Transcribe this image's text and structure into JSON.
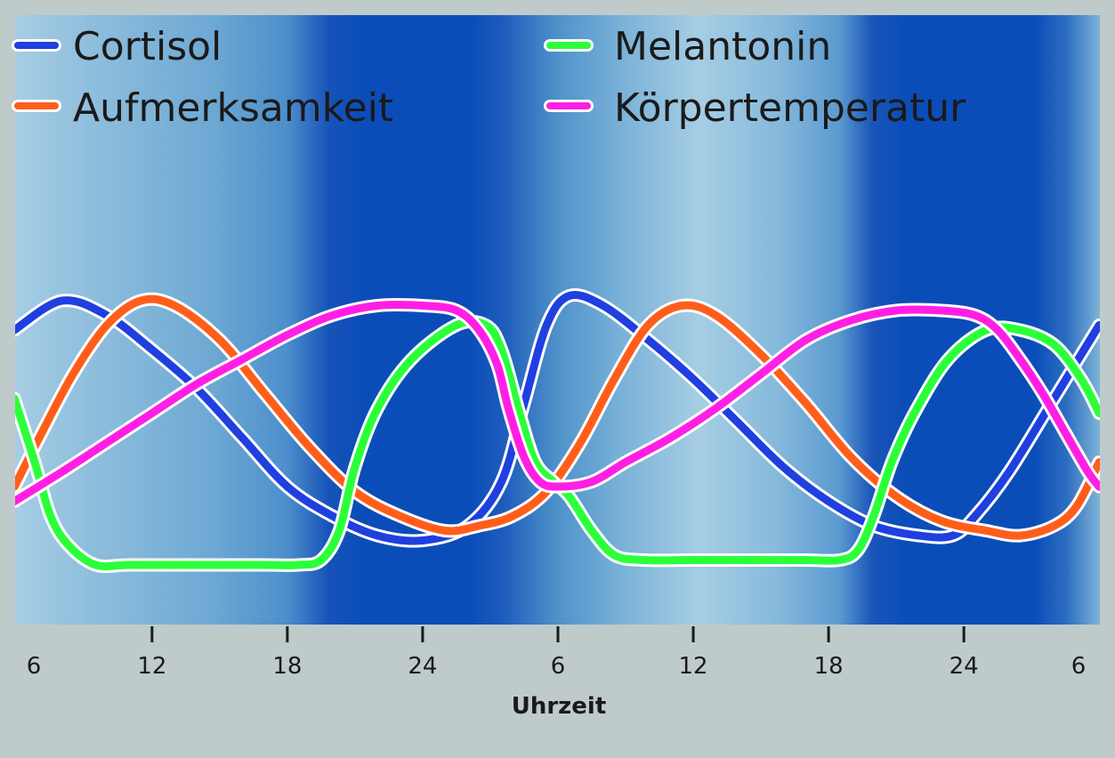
{
  "chart_data": {
    "type": "line",
    "xlabel": "Uhrzeit",
    "x_ticks": [
      {
        "label": "6",
        "value": 6
      },
      {
        "label": "12",
        "value": 12
      },
      {
        "label": "18",
        "value": 18
      },
      {
        "label": "24",
        "value": 24
      },
      {
        "label": "6",
        "value": 30
      },
      {
        "label": "12",
        "value": 36
      },
      {
        "label": "18",
        "value": 42
      },
      {
        "label": "24",
        "value": 48
      },
      {
        "label": "6",
        "value": 54
      }
    ],
    "xlim": [
      5.93,
      54.03
    ],
    "ylim": [
      0,
      1
    ],
    "legend_position": "top",
    "background": "day/night gradient (light blue = day, dark blue = night)",
    "series": [
      {
        "name": "Cortisol",
        "color": "#1f3fe0",
        "points": [
          [
            5.9,
            0.58
          ],
          [
            8.0,
            0.64
          ],
          [
            10.0,
            0.61
          ],
          [
            12.0,
            0.54
          ],
          [
            14.0,
            0.46
          ],
          [
            16.0,
            0.36
          ],
          [
            18.0,
            0.26
          ],
          [
            20.0,
            0.2
          ],
          [
            22.0,
            0.16
          ],
          [
            24.0,
            0.15
          ],
          [
            26.0,
            0.18
          ],
          [
            27.5,
            0.27
          ],
          [
            28.5,
            0.43
          ],
          [
            29.5,
            0.59
          ],
          [
            30.5,
            0.65
          ],
          [
            32.0,
            0.63
          ],
          [
            34.0,
            0.56
          ],
          [
            36.0,
            0.48
          ],
          [
            38.0,
            0.39
          ],
          [
            40.0,
            0.3
          ],
          [
            42.0,
            0.23
          ],
          [
            44.0,
            0.18
          ],
          [
            46.0,
            0.16
          ],
          [
            47.5,
            0.16
          ],
          [
            48.5,
            0.2
          ],
          [
            50.0,
            0.29
          ],
          [
            52.0,
            0.44
          ],
          [
            54.0,
            0.59
          ]
        ]
      },
      {
        "name": "Aufmerksamkeit",
        "color": "#ff5e1a",
        "points": [
          [
            5.9,
            0.26
          ],
          [
            7.0,
            0.36
          ],
          [
            8.5,
            0.49
          ],
          [
            10.0,
            0.59
          ],
          [
            11.5,
            0.64
          ],
          [
            13.0,
            0.63
          ],
          [
            15.0,
            0.56
          ],
          [
            17.0,
            0.45
          ],
          [
            19.0,
            0.34
          ],
          [
            21.0,
            0.25
          ],
          [
            23.0,
            0.2
          ],
          [
            25.0,
            0.17
          ],
          [
            26.5,
            0.18
          ],
          [
            28.0,
            0.2
          ],
          [
            29.5,
            0.25
          ],
          [
            31.0,
            0.35
          ],
          [
            32.5,
            0.48
          ],
          [
            34.0,
            0.59
          ],
          [
            35.5,
            0.63
          ],
          [
            37.0,
            0.61
          ],
          [
            39.0,
            0.53
          ],
          [
            41.0,
            0.43
          ],
          [
            43.0,
            0.32
          ],
          [
            45.0,
            0.24
          ],
          [
            47.0,
            0.19
          ],
          [
            49.0,
            0.17
          ],
          [
            50.5,
            0.16
          ],
          [
            52.0,
            0.18
          ],
          [
            53.0,
            0.22
          ],
          [
            54.0,
            0.31
          ]
        ]
      },
      {
        "name": "Melantonin",
        "color": "#2bff3a",
        "points": [
          [
            5.9,
            0.44
          ],
          [
            6.8,
            0.31
          ],
          [
            7.5,
            0.2
          ],
          [
            8.3,
            0.14
          ],
          [
            9.5,
            0.1
          ],
          [
            11.0,
            0.1
          ],
          [
            14.0,
            0.1
          ],
          [
            17.0,
            0.1
          ],
          [
            18.5,
            0.1
          ],
          [
            19.5,
            0.11
          ],
          [
            20.3,
            0.17
          ],
          [
            21.0,
            0.3
          ],
          [
            22.0,
            0.42
          ],
          [
            23.5,
            0.52
          ],
          [
            25.5,
            0.59
          ],
          [
            26.8,
            0.59
          ],
          [
            27.5,
            0.54
          ],
          [
            28.3,
            0.41
          ],
          [
            29.0,
            0.31
          ],
          [
            29.8,
            0.27
          ],
          [
            30.5,
            0.24
          ],
          [
            31.5,
            0.17
          ],
          [
            32.5,
            0.12
          ],
          [
            33.8,
            0.11
          ],
          [
            36.0,
            0.11
          ],
          [
            39.0,
            0.11
          ],
          [
            41.0,
            0.11
          ],
          [
            42.5,
            0.11
          ],
          [
            43.3,
            0.13
          ],
          [
            44.0,
            0.2
          ],
          [
            44.8,
            0.31
          ],
          [
            45.8,
            0.41
          ],
          [
            47.3,
            0.52
          ],
          [
            49.0,
            0.58
          ],
          [
            50.5,
            0.58
          ],
          [
            52.0,
            0.55
          ],
          [
            53.2,
            0.48
          ],
          [
            54.0,
            0.41
          ]
        ]
      },
      {
        "name": "Körpertemperatur",
        "color": "#ff1fe4",
        "points": [
          [
            5.9,
            0.23
          ],
          [
            8.0,
            0.29
          ],
          [
            10.0,
            0.35
          ],
          [
            12.0,
            0.41
          ],
          [
            14.0,
            0.47
          ],
          [
            16.0,
            0.52
          ],
          [
            18.0,
            0.57
          ],
          [
            20.0,
            0.61
          ],
          [
            22.0,
            0.63
          ],
          [
            24.0,
            0.63
          ],
          [
            25.5,
            0.62
          ],
          [
            26.5,
            0.58
          ],
          [
            27.3,
            0.51
          ],
          [
            27.8,
            0.42
          ],
          [
            28.5,
            0.32
          ],
          [
            29.2,
            0.27
          ],
          [
            30.0,
            0.26
          ],
          [
            31.5,
            0.27
          ],
          [
            33.0,
            0.31
          ],
          [
            35.0,
            0.36
          ],
          [
            37.0,
            0.42
          ],
          [
            39.0,
            0.49
          ],
          [
            41.0,
            0.56
          ],
          [
            43.0,
            0.6
          ],
          [
            45.0,
            0.62
          ],
          [
            47.0,
            0.62
          ],
          [
            48.5,
            0.61
          ],
          [
            49.5,
            0.58
          ],
          [
            50.5,
            0.52
          ],
          [
            51.5,
            0.45
          ],
          [
            52.5,
            0.37
          ],
          [
            53.5,
            0.29
          ],
          [
            54.0,
            0.26
          ]
        ]
      }
    ]
  },
  "legend": {
    "items": [
      {
        "label": "Cortisol",
        "color": "#1f3fe0"
      },
      {
        "label": "Melantonin",
        "color": "#2bff3a"
      },
      {
        "label": "Aufmerksamkeit",
        "color": "#ff5e1a"
      },
      {
        "label": "Körpertemperatur",
        "color": "#ff1fe4"
      }
    ]
  }
}
